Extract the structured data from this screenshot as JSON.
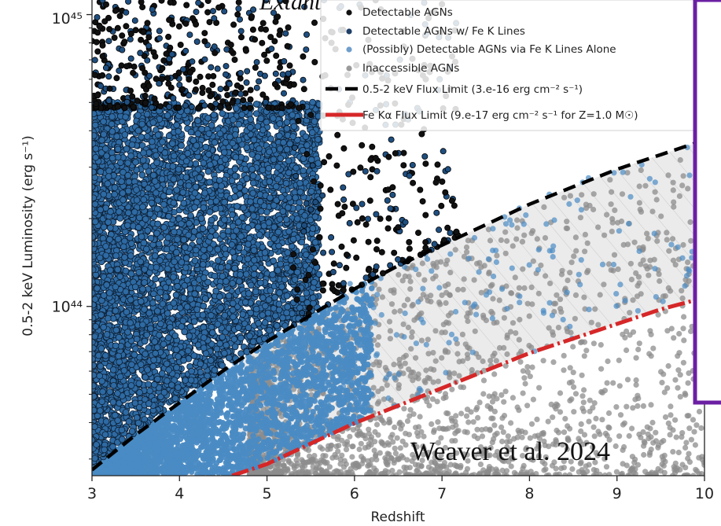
{
  "chart_data": {
    "type": "scatter",
    "title": "Extant",
    "credit": "Weaver et al. 2024",
    "xlabel": "Redshift",
    "ylabel": "0.5-2 keV Luminosity (erg s⁻¹)",
    "xlim": [
      3,
      10
    ],
    "ylim_log10": [
      43.42,
      45.05
    ],
    "ylog": true,
    "x_ticks": [
      3,
      4,
      5,
      6,
      7,
      8,
      9,
      10
    ],
    "y_ticks": [
      {
        "value_log10": 44,
        "label": "10⁴⁴"
      },
      {
        "value_log10": 45,
        "label": "10⁴⁵"
      }
    ],
    "legend_position": "top-right",
    "legend": [
      {
        "label": "Detectable AGNs",
        "kind": "dot",
        "color": "#111111"
      },
      {
        "label": "Detectable AGNs w/ Fe K Lines",
        "kind": "dot",
        "color": "#1f3f66"
      },
      {
        "label": "(Possibly) Detectable AGNs via Fe K Lines Alone",
        "kind": "dot",
        "color": "#6f9ecb"
      },
      {
        "label": "Inaccessible AGNs",
        "kind": "dot",
        "color": "#9a9a9a"
      },
      {
        "label": "0.5-2 keV Flux Limit (3.e-16 erg cm⁻² s⁻¹)",
        "kind": "dashed-line",
        "color": "#000000"
      },
      {
        "label": "Fe Kα Flux Limit (9.e-17 erg cm⁻² s⁻¹ for Z=1.0 M☉)",
        "kind": "dashdot-line",
        "color": "#d62728"
      }
    ],
    "series": [
      {
        "name": "0.5-2 keV Flux Limit (3.e-16 erg cm⁻² s⁻¹)",
        "x": [
          3.0,
          3.5,
          4.0,
          4.5,
          5.0,
          5.5,
          6.0,
          6.5,
          7.0,
          7.5,
          8.0,
          8.5,
          9.0,
          9.5,
          10.0
        ],
        "y_log10": [
          43.44,
          43.56,
          43.67,
          43.78,
          43.88,
          43.97,
          44.06,
          44.14,
          44.21,
          44.28,
          44.35,
          44.41,
          44.47,
          44.52,
          44.57
        ]
      },
      {
        "name": "Fe Kα Flux Limit (9.e-17 erg cm⁻² s⁻¹ for Z=1.0 M☉)",
        "x": [
          4.6,
          5.0,
          5.5,
          6.0,
          6.5,
          7.0,
          7.5,
          8.0,
          8.5,
          9.0,
          9.5,
          10.0
        ],
        "y_log10": [
          43.42,
          43.46,
          43.53,
          43.6,
          43.66,
          43.72,
          43.78,
          43.84,
          43.89,
          43.94,
          43.99,
          44.03
        ]
      }
    ],
    "scatter_regions": [
      {
        "name": "Inaccessible AGNs",
        "color": "#8c8c8c",
        "x_range": [
          4.8,
          10
        ],
        "approx_points": 2000
      },
      {
        "name": "(Possibly) Detectable AGNs via Fe K Lines Alone",
        "color": "#4a8bc4",
        "x_range": [
          3,
          8.5
        ],
        "approx_points": 3000
      },
      {
        "name": "Detectable AGNs w/ Fe K Lines",
        "color": "#1f4f80",
        "x_range": [
          3,
          5.5
        ],
        "y_log10_max": 44.7,
        "approx_points": 6000
      },
      {
        "name": "Detectable AGNs",
        "color": "#111111",
        "x_range": [
          3,
          7
        ],
        "approx_points": 700
      }
    ]
  }
}
